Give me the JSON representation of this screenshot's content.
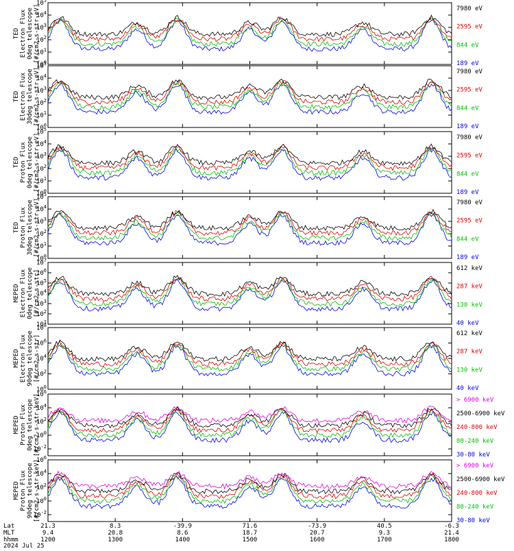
{
  "chart_data": [
    {
      "type": "line",
      "ylabel": [
        "TED",
        "Electron Flux",
        "0deg telescope",
        "[#/cm2-s-str-eV]"
      ],
      "ylim": [
        1.0,
        100000.0
      ],
      "log": true,
      "ticks": [
        "10^0",
        "10^1",
        "10^2",
        "10^3",
        "10^4",
        "10^5"
      ],
      "legend": [
        {
          "label": "7980 eV",
          "color": "#000000"
        },
        {
          "label": "2595 eV",
          "color": "#e00000"
        },
        {
          "label": "844 eV",
          "color": "#00c000"
        },
        {
          "label": "189 eV",
          "color": "#0000e0"
        }
      ]
    },
    {
      "type": "line",
      "ylabel": [
        "TED",
        "Electron Flux",
        "30deg telescope",
        "[#/cm2-s-str-eV]"
      ],
      "ylim": [
        1.0,
        100000.0
      ],
      "log": true,
      "ticks": [
        "10^0",
        "10^1",
        "10^2",
        "10^3",
        "10^4",
        "10^5"
      ],
      "legend": [
        {
          "label": "7980 eV",
          "color": "#000000"
        },
        {
          "label": "2595 eV",
          "color": "#e00000"
        },
        {
          "label": "844 eV",
          "color": "#00c000"
        },
        {
          "label": "189 eV",
          "color": "#0000e0"
        }
      ]
    },
    {
      "type": "line",
      "ylabel": [
        "TED",
        "Proton Flux",
        "0deg telescope",
        "[#/cm2-s-str-eV]"
      ],
      "ylim": [
        1.0,
        100000.0
      ],
      "log": true,
      "ticks": [
        "10^0",
        "10^1",
        "10^2",
        "10^3",
        "10^4",
        "10^5"
      ],
      "legend": [
        {
          "label": "7980 eV",
          "color": "#000000"
        },
        {
          "label": "2595 eV",
          "color": "#e00000"
        },
        {
          "label": "844 eV",
          "color": "#00c000"
        },
        {
          "label": "189 eV",
          "color": "#0000e0"
        }
      ]
    },
    {
      "type": "line",
      "ylabel": [
        "TED",
        "Proton Flux",
        "30deg telescope",
        "[#/cm2-s-str-eV]"
      ],
      "ylim": [
        1.0,
        100000.0
      ],
      "log": true,
      "ticks": [
        "10^0",
        "10^1",
        "10^2",
        "10^3",
        "10^4",
        "10^5"
      ],
      "legend": [
        {
          "label": "7980 eV",
          "color": "#000000"
        },
        {
          "label": "2595 eV",
          "color": "#e00000"
        },
        {
          "label": "844 eV",
          "color": "#00c000"
        },
        {
          "label": "189 eV",
          "color": "#0000e0"
        }
      ]
    },
    {
      "type": "line",
      "ylabel": [
        "MEPED",
        "Electron Flux",
        "0deg telescope",
        "[#/cm2-s-str]"
      ],
      "ylim": [
        10.0,
        10000000.0
      ],
      "log": true,
      "ticks": [
        "10^1",
        "10^2",
        "10^3",
        "10^4",
        "10^5",
        "10^6",
        "10^7"
      ],
      "legend": [
        {
          "label": "612 keV",
          "color": "#000000"
        },
        {
          "label": "287 keV",
          "color": "#e00000"
        },
        {
          "label": "130 keV",
          "color": "#00c000"
        },
        {
          "label": "40 keV",
          "color": "#0000e0"
        }
      ]
    },
    {
      "type": "line",
      "ylabel": [
        "MEPED",
        "Electron Flux",
        "90deg telescope",
        "[#/cm2-s-str]"
      ],
      "ylim": [
        1.0,
        100000000.0
      ],
      "log": true,
      "ticks": [
        "10^0",
        "10^2",
        "10^4",
        "10^6",
        "10^8"
      ],
      "legend": [
        {
          "label": "612 keV",
          "color": "#000000"
        },
        {
          "label": "287 keV",
          "color": "#e00000"
        },
        {
          "label": "130 keV",
          "color": "#00c000"
        },
        {
          "label": "40 keV",
          "color": "#0000e0"
        }
      ]
    },
    {
      "type": "line",
      "ylabel": [
        "MEPED",
        "Proton Flux",
        "0deg telescope",
        "[#/cm2-s-str-keV]"
      ],
      "ylim": [
        0.001,
        1000000.0
      ],
      "log": true,
      "ticks": [
        "10^-2",
        "10^0",
        "10^2",
        "10^4",
        "10^6"
      ],
      "legend": [
        {
          "label": "> 6900 keV",
          "color": "#e000e0"
        },
        {
          "label": "2500-6900 keV",
          "color": "#000000"
        },
        {
          "label": "240-800 keV",
          "color": "#e00000"
        },
        {
          "label": "80-240 keV",
          "color": "#00c000"
        },
        {
          "label": "30-80 keV",
          "color": "#0000e0"
        }
      ]
    },
    {
      "type": "line",
      "ylabel": [
        "MEPED",
        "Proton Flux",
        "90deg telescope",
        "[#/cm2-s-str-keV]"
      ],
      "ylim": [
        0.001,
        1000000.0
      ],
      "log": true,
      "ticks": [
        "10^-2",
        "10^0",
        "10^2",
        "10^4",
        "10^6"
      ],
      "legend": [
        {
          "label": "> 6900 keV",
          "color": "#e000e0"
        },
        {
          "label": "2500-6900 keV",
          "color": "#000000"
        },
        {
          "label": "240-800 keV",
          "color": "#e00000"
        },
        {
          "label": "80-240 keV",
          "color": "#00c000"
        },
        {
          "label": "30-80 keV",
          "color": "#0000e0"
        }
      ]
    }
  ],
  "x_axis": {
    "row_labels": [
      "Lat",
      "MLT",
      "hhmm"
    ],
    "date": "2024 Jul 25",
    "ticks": [
      {
        "lat": "21.3",
        "mlt": "9.4",
        "hhmm": "1200"
      },
      {
        "lat": "8.3",
        "mlt": "20.8",
        "hhmm": "1300"
      },
      {
        "lat": "-39.9",
        "mlt": "8.6",
        "hhmm": "1400"
      },
      {
        "lat": "71.6",
        "mlt": "18.7",
        "hhmm": "1500"
      },
      {
        "lat": "-73.9",
        "mlt": "20.7",
        "hhmm": "1600"
      },
      {
        "lat": "40.5",
        "mlt": "9.3",
        "hhmm": "1700"
      },
      {
        "lat": "-6.3",
        "mlt": "21.4",
        "hhmm": "1800"
      }
    ]
  }
}
